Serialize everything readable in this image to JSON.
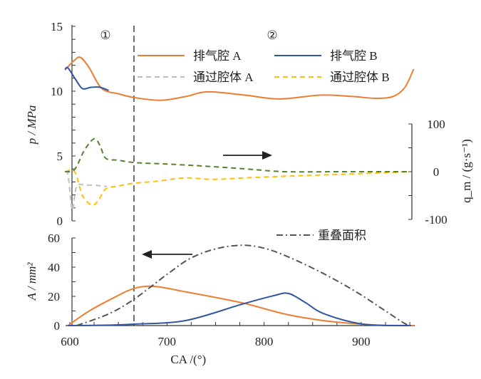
{
  "chart_data": [
    {
      "type": "line",
      "panel": "top",
      "xlabel": "CA /(°)",
      "ylabel": "p / MPa",
      "ylim": [
        0,
        15
      ],
      "yticks": [
        "0",
        "5",
        "10",
        "15"
      ],
      "y2label": "q_m / (g·s⁻¹)",
      "y2label_parts": {
        "q": "q",
        "sub": "m",
        "rest": " / (g·s",
        "sup": "-1",
        "close": ")"
      },
      "y2lim": [
        -100,
        100
      ],
      "y2ticks": [
        "-100",
        "0",
        "100"
      ],
      "region_labels": [
        "①",
        "②"
      ],
      "divider_ca": 666,
      "series": [
        {
          "name": "排气腔 A",
          "axis": "left",
          "color": "#ed7d31",
          "style": "solid",
          "x": [
            595,
            605,
            611,
            620,
            633,
            650,
            667,
            694,
            720,
            742,
            780,
            816,
            858,
            890,
            915,
            933,
            945,
            954
          ],
          "y": [
            11.65,
            12.4,
            12.6,
            11.8,
            10.2,
            9.8,
            9.5,
            9.3,
            9.6,
            9.95,
            9.7,
            9.4,
            9.7,
            9.6,
            9.45,
            9.6,
            10.3,
            11.7
          ]
        },
        {
          "name": "排气腔 B",
          "axis": "left",
          "color": "#2f55a4",
          "style": "solid",
          "x": [
            595,
            598,
            606,
            613,
            622,
            631,
            640
          ],
          "y": [
            11.65,
            11.8,
            10.9,
            10.2,
            10.3,
            10.3,
            10.05
          ]
        },
        {
          "name": "通过腔体 A",
          "axis": "right",
          "color": "#bfbfbf",
          "style": "dashed",
          "x": [
            595,
            598,
            601,
            603,
            607,
            616,
            628,
            638
          ],
          "y": [
            0,
            -6,
            -60,
            -80,
            -31,
            -28,
            -29,
            -31
          ]
        },
        {
          "name": "通过腔体 B",
          "axis": "right",
          "color": "#ffc000",
          "style": "dashed",
          "x": [
            595,
            605,
            613,
            623,
            630,
            637,
            650,
            667,
            690,
            719,
            748,
            790,
            858,
            900,
            950
          ],
          "y": [
            0,
            0,
            -50,
            -70,
            -58,
            -36,
            -30,
            -24,
            -20,
            -13,
            -16,
            -12,
            -7,
            -4,
            0
          ]
        },
        {
          "name": "",
          "axis": "right",
          "color": "#548235",
          "style": "dashed",
          "x": [
            595,
            605,
            615,
            625,
            631,
            637,
            650,
            667,
            700,
            736,
            780,
            822,
            880,
            950
          ],
          "y": [
            0,
            5,
            45,
            69,
            55,
            28,
            24,
            19,
            16,
            12,
            6,
            0,
            0,
            0
          ]
        }
      ]
    },
    {
      "type": "line",
      "panel": "bottom",
      "xlabel": "CA /(°)",
      "xlim": [
        595,
        955
      ],
      "xticks": [
        "600",
        "700",
        "800",
        "900"
      ],
      "ylabel": "A / mm²",
      "ylim": [
        0,
        60
      ],
      "yticks": [
        "0",
        "20",
        "40",
        "60"
      ],
      "series": [
        {
          "name": "排气腔 A",
          "color": "#ed7d31",
          "style": "solid",
          "x": [
            598,
            620,
            645,
            666,
            687,
            720,
            777,
            822,
            860,
            900,
            930,
            955
          ],
          "y": [
            0,
            10,
            19,
            25.4,
            26.8,
            23,
            15.6,
            7.8,
            3.5,
            1,
            0,
            0
          ]
        },
        {
          "name": "排气腔 B",
          "color": "#2f55a4",
          "style": "solid",
          "x": [
            598,
            640,
            666,
            719,
            777,
            810,
            825,
            842,
            862,
            902,
            950
          ],
          "y": [
            0,
            0.3,
            1,
            3.4,
            14.6,
            20.5,
            22,
            16,
            8,
            1,
            0
          ]
        },
        {
          "name": "重叠面积",
          "color": "#555555",
          "style": "dashdot",
          "x": [
            607,
            640,
            666,
            700,
            724,
            750,
            777,
            800,
            825,
            860,
            895,
            925,
            946,
            955
          ],
          "y": [
            0,
            8,
            18,
            35,
            46,
            52.5,
            55,
            53,
            47,
            36,
            23,
            10,
            1,
            0
          ]
        }
      ]
    }
  ]
}
